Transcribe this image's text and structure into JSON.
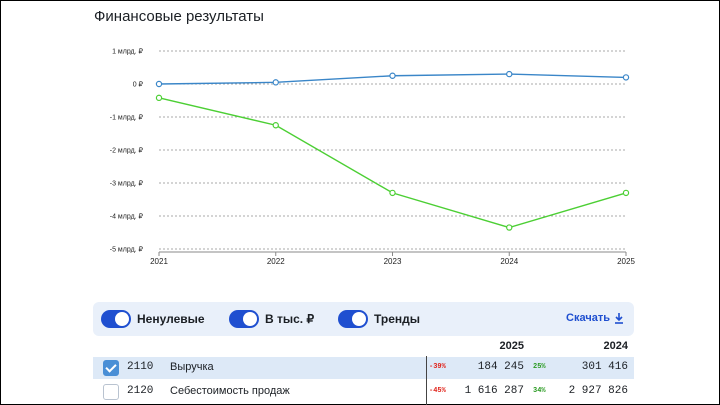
{
  "title": "Финансовые результаты",
  "chart_data": {
    "type": "line",
    "x": [
      "2021",
      "2022",
      "2023",
      "2024",
      "2025"
    ],
    "y_ticks": [
      "1 млрд. ₽",
      "0 ₽",
      "-1 млрд. ₽",
      "-2 млрд. ₽",
      "-3 млрд. ₽",
      "-4 млрд. ₽",
      "-5 млрд. ₽"
    ],
    "ylim": [
      -5,
      1
    ],
    "y_unit": "млрд. ₽",
    "grid": true,
    "series": [
      {
        "color": "#3a86c8",
        "values": [
          0.0,
          0.05,
          0.25,
          0.3,
          0.2
        ]
      },
      {
        "color": "#4ccf34",
        "values": [
          -0.42,
          -1.25,
          -3.3,
          -4.35,
          -3.3
        ]
      }
    ]
  },
  "controls": {
    "toggle_nonzero": "Ненулевые",
    "toggle_thousands": "В тыс. ₽",
    "toggle_trends": "Тренды",
    "download": "Скачать"
  },
  "table": {
    "years": [
      "2025",
      "2024"
    ],
    "rows": [
      {
        "code": "2110",
        "name": "Выручка",
        "checked": true,
        "pct_2025": "-39%",
        "val_2025": "184 245",
        "pct_2024": "25%",
        "val_2024": "301 416"
      },
      {
        "code": "2120",
        "name": "Себестоимость продаж",
        "checked": false,
        "pct_2025": "-45%",
        "val_2025": "1 616 287",
        "pct_2024": "34%",
        "val_2024": "2 927 826"
      }
    ]
  },
  "colors": {
    "accent": "#1f4fd0",
    "negative": "#e0241b",
    "positive": "#2a9a22"
  }
}
